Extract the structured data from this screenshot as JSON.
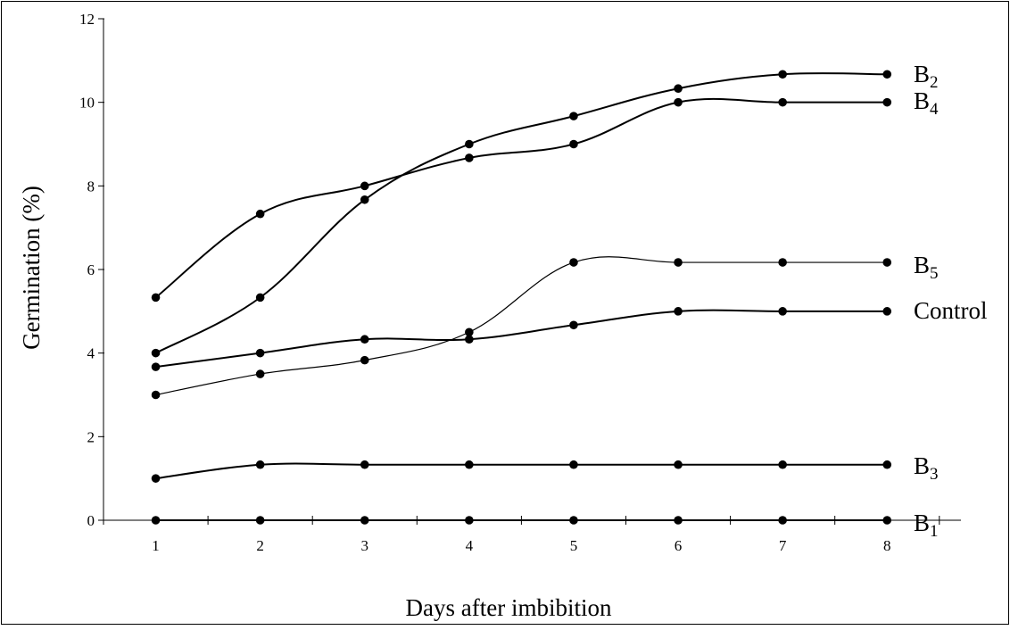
{
  "chart_data": {
    "type": "line",
    "xlabel": "Days after imbibition",
    "ylabel": "Germination (%)",
    "xlim": [
      0,
      8.5
    ],
    "ylim": [
      0,
      12
    ],
    "x": [
      1,
      2,
      3,
      4,
      5,
      6,
      7,
      8
    ],
    "yticks": [
      0,
      2,
      4,
      6,
      8,
      10,
      12
    ],
    "grid": false,
    "smoothed": true,
    "series": [
      {
        "name": "B2",
        "label_base": "B",
        "label_sub": "2",
        "values": [
          4.0,
          5.33,
          7.67,
          9.0,
          9.67,
          10.33,
          10.67,
          10.67
        ]
      },
      {
        "name": "B4",
        "label_base": "B",
        "label_sub": "4",
        "values": [
          5.33,
          7.33,
          8.0,
          8.67,
          9.0,
          10.0,
          10.0,
          10.0
        ]
      },
      {
        "name": "B5",
        "label_base": "B",
        "label_sub": "5",
        "values": [
          3.0,
          3.5,
          3.83,
          4.5,
          6.17,
          6.17,
          6.17,
          6.17
        ]
      },
      {
        "name": "Control",
        "label_base": "Control",
        "label_sub": "",
        "values": [
          3.67,
          4.0,
          4.33,
          4.33,
          4.67,
          5.0,
          5.0,
          5.0
        ]
      },
      {
        "name": "B3",
        "label_base": "B",
        "label_sub": "3",
        "values": [
          1.0,
          1.33,
          1.33,
          1.33,
          1.33,
          1.33,
          1.33,
          1.33
        ]
      },
      {
        "name": "B1",
        "label_base": "B",
        "label_sub": "1",
        "values": [
          0,
          0,
          0,
          0,
          0,
          0,
          0,
          0
        ]
      }
    ]
  }
}
